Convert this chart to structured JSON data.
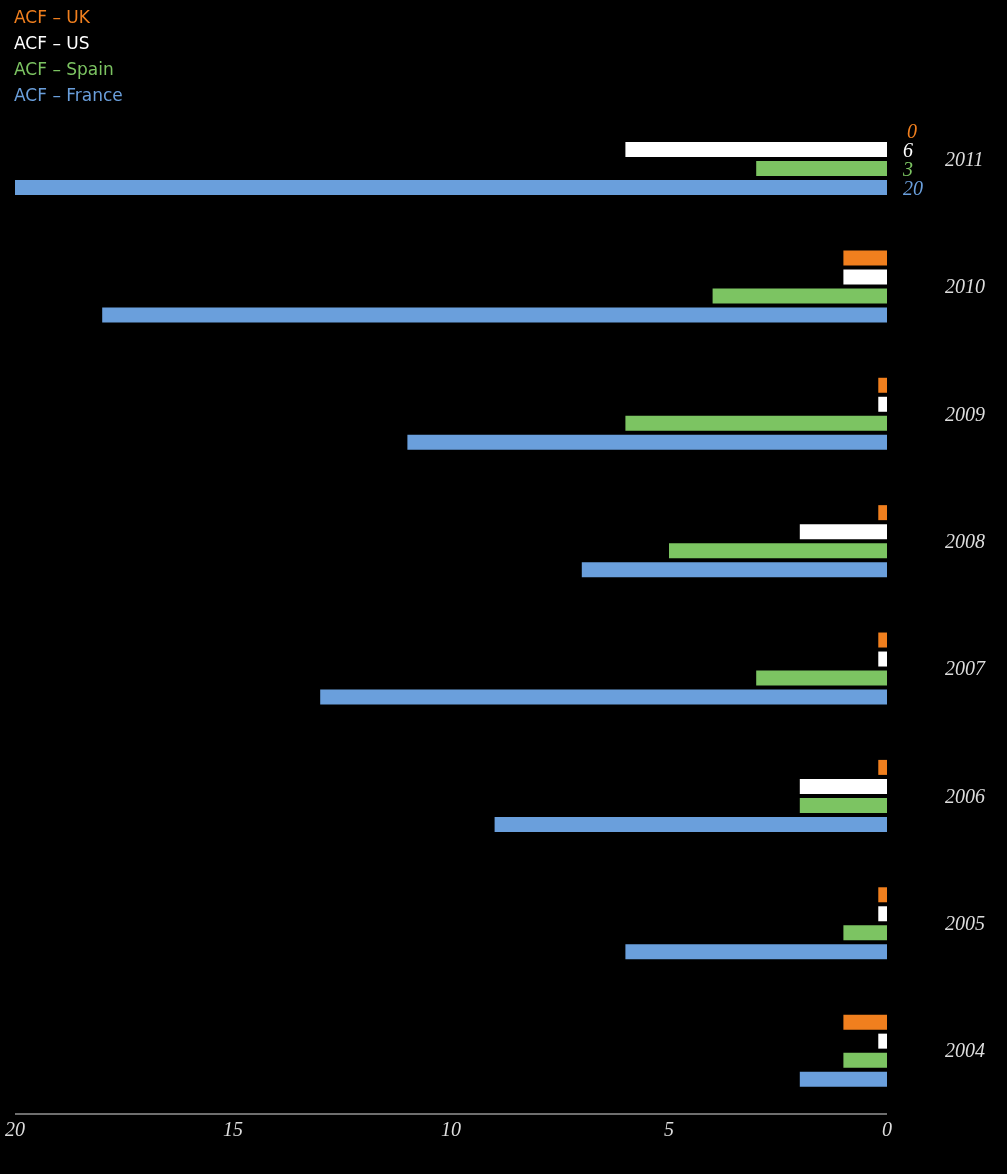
{
  "chart_data": {
    "type": "bar",
    "orientation": "horizontal",
    "categories": [
      "2011",
      "2010",
      "2009",
      "2008",
      "2007",
      "2006",
      "2005",
      "2004"
    ],
    "series": [
      {
        "name": "ACF – UK",
        "color": "#f07f1e",
        "values": [
          0,
          1,
          0.2,
          0.2,
          0.2,
          0.2,
          0.2,
          1
        ],
        "value_labels": [
          "0",
          null,
          null,
          null,
          null,
          null,
          null,
          null
        ]
      },
      {
        "name": "ACF – US",
        "color": "#ffffff",
        "values": [
          6,
          1,
          0.2,
          2,
          0.2,
          2,
          0.2,
          0.2
        ],
        "value_labels": [
          "6",
          null,
          null,
          null,
          null,
          null,
          null,
          null
        ]
      },
      {
        "name": "ACF – Spain",
        "color": "#7cc462",
        "values": [
          3,
          4,
          6,
          5,
          3,
          2,
          1,
          1
        ],
        "value_labels": [
          "3",
          null,
          null,
          null,
          null,
          null,
          null,
          null
        ]
      },
      {
        "name": "ACF – France",
        "color": "#6a9fdc",
        "values": [
          20,
          18,
          11,
          7,
          13,
          9,
          6,
          2
        ],
        "value_labels": [
          "20",
          null,
          null,
          null,
          null,
          null,
          null,
          null
        ]
      }
    ],
    "xlim": [
      20,
      0
    ],
    "xticks": [
      20,
      15,
      10,
      5,
      0
    ],
    "grid": false,
    "legend": "top left"
  }
}
